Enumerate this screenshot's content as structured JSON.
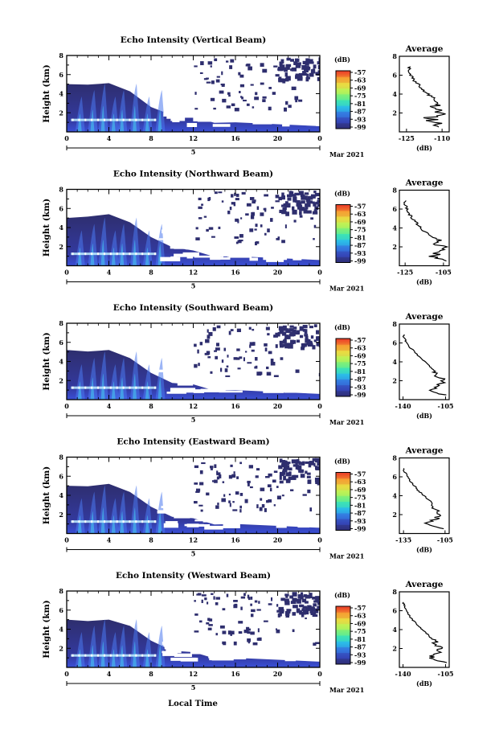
{
  "figure": {
    "xlabel": "Local Time",
    "date_label": "Mar 2021",
    "day_label": "5"
  },
  "colorbar": {
    "unit": "(dB)",
    "ticks": [
      "-57",
      "-63",
      "-69",
      "-75",
      "-81",
      "-87",
      "-93",
      "-99"
    ],
    "colors": [
      "#e8392a",
      "#f47a2a",
      "#f7c63a",
      "#d9f04a",
      "#8ef26a",
      "#3fe6b0",
      "#2bbce8",
      "#3478e0",
      "#3546b8",
      "#2f2f78"
    ]
  },
  "panels": [
    {
      "title": "Echo Intensity (Vertical Beam)",
      "ylabel": "Height (km)",
      "avg_title": "Average",
      "avg_xlabel": "(dB)",
      "avg_xticks": [
        "-125",
        "-110"
      ]
    },
    {
      "title": "Echo Intensity (Northward Beam)",
      "ylabel": "Height (km)",
      "avg_title": "Average",
      "avg_xlabel": "(dB)",
      "avg_xticks": [
        "-125",
        "-105"
      ]
    },
    {
      "title": "Echo Intensity (Southward Beam)",
      "ylabel": "Height (km)",
      "avg_title": "Average",
      "avg_xlabel": "(dB)",
      "avg_xticks": [
        "-140",
        "-105"
      ]
    },
    {
      "title": "Echo Intensity (Eastward Beam)",
      "ylabel": "Height (km)",
      "avg_title": "Average",
      "avg_xlabel": "(dB)",
      "avg_xticks": [
        "-135",
        "-105"
      ]
    },
    {
      "title": "Echo Intensity (Westward Beam)",
      "ylabel": "Height (km)",
      "avg_title": "Average",
      "avg_xlabel": "(dB)",
      "avg_xticks": [
        "-140",
        "-105"
      ]
    }
  ],
  "chart_data": [
    {
      "type": "heatmap",
      "title": "Echo Intensity (Vertical Beam)",
      "ylabel": "Height (km)",
      "x_ticks": [
        "0",
        "4",
        "8",
        "12",
        "16",
        "20",
        "0"
      ],
      "y_ticks": [
        "2",
        "4",
        "6",
        "8"
      ],
      "ylim": [
        0,
        8
      ],
      "xlim": [
        0,
        24
      ],
      "colorbar_range": [
        -99,
        -57
      ],
      "echo_top_km": [
        5.0,
        5.2,
        5.1,
        4.5,
        2.6,
        2.0,
        1.6,
        1.2,
        1.0
      ],
      "average_profile": {
        "height_km": [
          0.5,
          1,
          1.5,
          2,
          2.5,
          3,
          3.5,
          4,
          4.5,
          5,
          5.5,
          6,
          6.5,
          7
        ],
        "db": [
          -110,
          -113,
          -115,
          -110,
          -114,
          -112,
          -113,
          -116,
          -118,
          -120,
          -122,
          -123,
          -124,
          -124
        ]
      }
    },
    {
      "type": "heatmap",
      "title": "Echo Intensity (Northward Beam)",
      "ylabel": "Height (km)",
      "x_ticks": [
        "0",
        "4",
        "8",
        "12",
        "16",
        "20",
        "0"
      ],
      "y_ticks": [
        "2",
        "4",
        "6",
        "8"
      ],
      "ylim": [
        0,
        8
      ],
      "xlim": [
        0,
        24
      ],
      "colorbar_range": [
        -99,
        -57
      ],
      "echo_top_km": [
        5.0,
        5.4,
        5.4,
        4.8,
        3.0,
        2.2,
        1.6,
        1.2,
        1.0
      ],
      "average_profile": {
        "height_km": [
          0.5,
          1,
          1.5,
          2,
          2.5,
          3,
          3.5,
          4,
          4.5,
          5,
          5.5,
          6,
          6.5,
          7
        ],
        "db": [
          -105,
          -110,
          -108,
          -106,
          -108,
          -110,
          -114,
          -117,
          -119,
          -121,
          -123,
          -124,
          -125,
          -125
        ]
      }
    },
    {
      "type": "heatmap",
      "title": "Echo Intensity (Southward Beam)",
      "ylabel": "Height (km)",
      "x_ticks": [
        "0",
        "4",
        "8",
        "12",
        "16",
        "20",
        "0"
      ],
      "y_ticks": [
        "2",
        "4",
        "6",
        "8"
      ],
      "ylim": [
        0,
        8
      ],
      "xlim": [
        0,
        24
      ],
      "colorbar_range": [
        -99,
        -57
      ],
      "echo_top_km": [
        5.2,
        5.3,
        5.2,
        4.6,
        2.8,
        2.0,
        1.6,
        1.2,
        1.0
      ],
      "average_profile": {
        "height_km": [
          0.5,
          1,
          1.5,
          2,
          2.5,
          3,
          3.5,
          4,
          4.5,
          5,
          5.5,
          6,
          6.5,
          7
        ],
        "db": [
          -105,
          -118,
          -110,
          -106,
          -112,
          -114,
          -118,
          -122,
          -126,
          -130,
          -134,
          -137,
          -139,
          -140
        ]
      }
    },
    {
      "type": "heatmap",
      "title": "Echo Intensity (Eastward Beam)",
      "ylabel": "Height (km)",
      "x_ticks": [
        "0",
        "4",
        "8",
        "12",
        "16",
        "20",
        "0"
      ],
      "y_ticks": [
        "2",
        "4",
        "6",
        "8"
      ],
      "ylim": [
        0,
        8
      ],
      "xlim": [
        0,
        24
      ],
      "colorbar_range": [
        -99,
        -57
      ],
      "echo_top_km": [
        5.0,
        5.2,
        5.2,
        4.6,
        2.8,
        2.0,
        1.6,
        1.2,
        1.0
      ],
      "average_profile": {
        "height_km": [
          0.5,
          1,
          1.5,
          2,
          2.5,
          3,
          3.5,
          4,
          4.5,
          5,
          5.5,
          6,
          6.5,
          7
        ],
        "db": [
          -105,
          -120,
          -112,
          -108,
          -110,
          -114,
          -116,
          -120,
          -124,
          -127,
          -130,
          -132,
          -134,
          -135
        ]
      }
    },
    {
      "type": "heatmap",
      "title": "Echo Intensity (Westward Beam)",
      "ylabel": "Height (km)",
      "x_ticks": [
        "0",
        "4",
        "8",
        "12",
        "16",
        "20",
        "0"
      ],
      "y_ticks": [
        "2",
        "4",
        "6",
        "8"
      ],
      "ylim": [
        0,
        8
      ],
      "xlim": [
        0,
        24
      ],
      "colorbar_range": [
        -99,
        -57
      ],
      "echo_top_km": [
        5.0,
        5.1,
        5.0,
        4.6,
        2.8,
        2.0,
        1.6,
        1.2,
        1.0
      ],
      "average_profile": {
        "height_km": [
          0.5,
          1,
          1.5,
          2,
          2.5,
          3,
          3.5,
          4,
          4.5,
          5,
          5.5,
          6,
          6.5,
          7
        ],
        "db": [
          -105,
          -118,
          -112,
          -110,
          -112,
          -116,
          -120,
          -124,
          -128,
          -132,
          -135,
          -137,
          -139,
          -140
        ]
      }
    }
  ]
}
